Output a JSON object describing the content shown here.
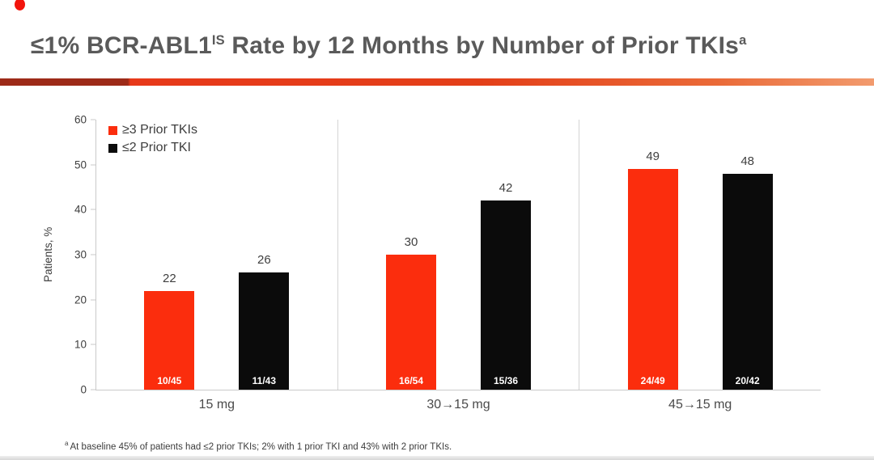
{
  "slide": {
    "title": {
      "part1": "≤1% BCR-ABL1",
      "sup1": "IS",
      "part2": " Rate by 12 Months by Number of Prior TKIs",
      "sup2": "a"
    },
    "footnote": {
      "sup": "a",
      "text": "At baseline 45% of patients had ≤2 prior TKIs; 2% with 1 prior TKI and 43% with 2 prior TKIs."
    }
  },
  "colors": {
    "accent_red": "#fb2d0d",
    "bar_black": "#0b0b0b",
    "title_gray": "#5a5a5a",
    "axis_line_gray": "#c9c9c9",
    "rule_dark_red": "#9d2a18",
    "rule_orange": "#e7391a"
  },
  "chart_data": {
    "type": "bar",
    "title": "≤1% BCR-ABL1 IS Rate by 12 Months by Number of Prior TKIs",
    "ylabel": "Patients, %",
    "xlabel": "",
    "ylim": [
      0,
      60
    ],
    "yticks": [
      0,
      10,
      20,
      30,
      40,
      50,
      60
    ],
    "grid": false,
    "legend_position": "upper-left",
    "categories": [
      "15 mg",
      "30→15 mg",
      "45→15 mg"
    ],
    "series": [
      {
        "name": "≥3 Prior TKIs",
        "color": "#fb2d0d",
        "values": [
          22,
          30,
          49
        ],
        "fractions": [
          "10/45",
          "16/54",
          "24/49"
        ]
      },
      {
        "name": "≤2 Prior TKI",
        "color": "#0b0b0b",
        "values": [
          26,
          42,
          48
        ],
        "fractions": [
          "11/43",
          "15/36",
          "20/42"
        ]
      }
    ]
  }
}
